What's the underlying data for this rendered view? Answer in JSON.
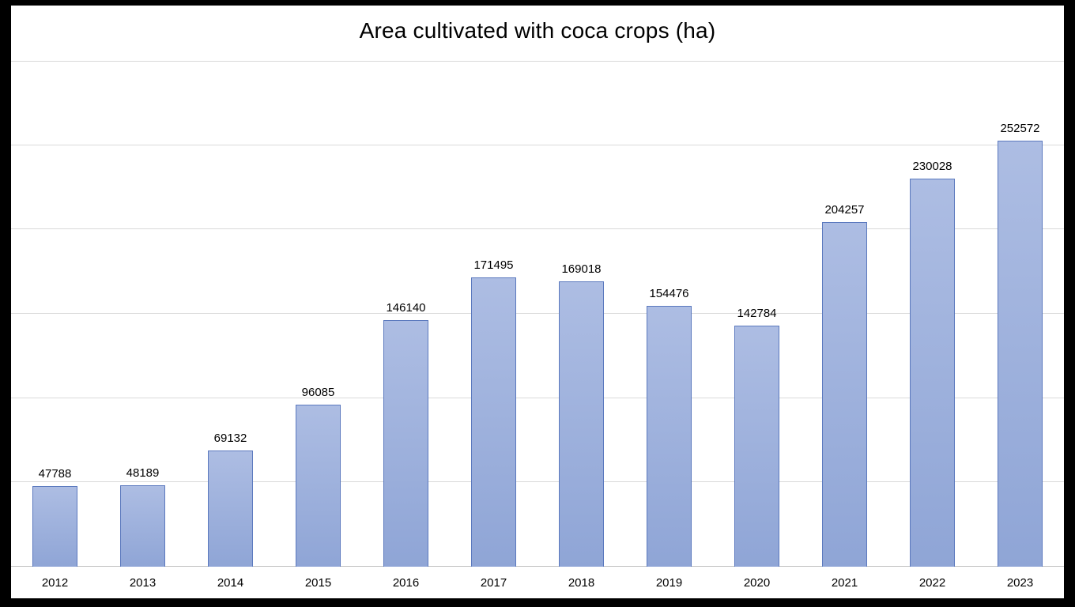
{
  "chart_data": {
    "type": "bar",
    "title": "Area cultivated with coca crops (ha)",
    "categories": [
      "2012",
      "2013",
      "2014",
      "2015",
      "2016",
      "2017",
      "2018",
      "2019",
      "2020",
      "2021",
      "2022",
      "2023"
    ],
    "values": [
      47788,
      48189,
      69132,
      96085,
      146140,
      171495,
      169018,
      154476,
      142784,
      204257,
      230028,
      252572
    ],
    "xlabel": "",
    "ylabel": "",
    "ylim": [
      0,
      300000
    ],
    "gridline_interval": 50000,
    "grid": true,
    "legend_position": "none",
    "data_labels": true,
    "colors": {
      "bar_fill_top": "#adbde3",
      "bar_fill_bottom": "#8fa5d6",
      "bar_border": "#5b79be",
      "gridline": "#d9d9d9",
      "axis_line": "#bfbfbf",
      "chart_background": "#ffffff",
      "frame_background": "#000000",
      "text": "#000000"
    }
  }
}
